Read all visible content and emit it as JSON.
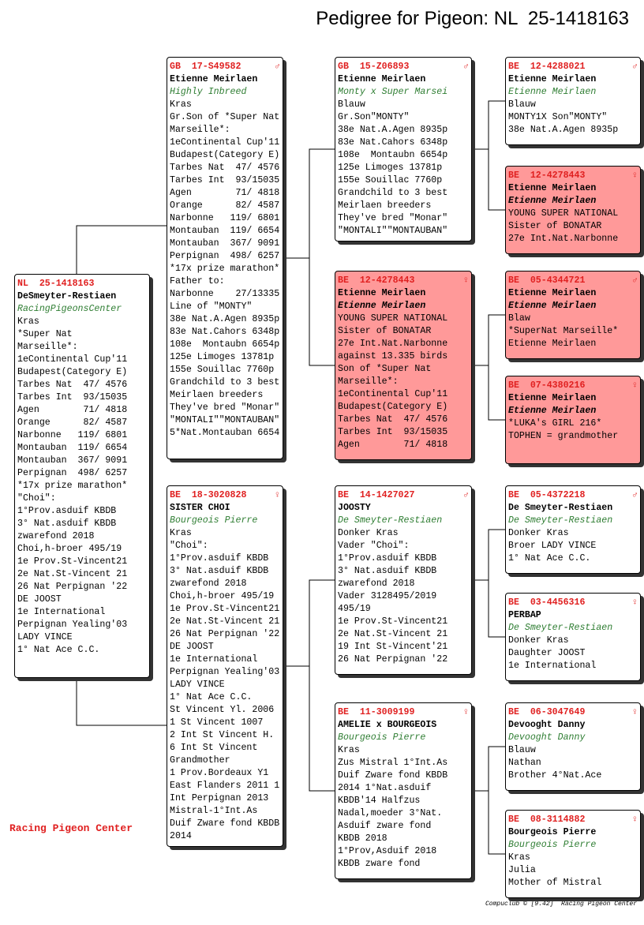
{
  "title": "Pedigree for Pigeon: NL  25-1418163",
  "footer": "Racing Pigeon Center",
  "credit": "Compuclub © [9.42]  Racing Pigeon Center",
  "pigeons": [
    {
      "ring": "NL  25-1418163",
      "name": "DeSmeyter-Restiaen",
      "second": "RacingPigeonsCenter",
      "background": "#ffffff",
      "lines": [
        "Kras",
        "*Super Nat",
        "Marseille*:",
        "1eContinental Cup'11",
        "Budapest(Category E)",
        "Tarbes Nat  47/ 4576",
        "Tarbes Int  93/15035",
        "Agen        71/ 4818",
        "Orange      82/ 4587",
        "Narbonne   119/ 6801",
        "Montauban  119/ 6654",
        "Montauban  367/ 9091",
        "Perpignan  498/ 6257",
        "*17x prize marathon*",
        "\"Choi\":",
        "1°Prov.asduif KBDB",
        "3° Nat.asduif KBDB",
        "zwarefond 2018",
        "Choi,h-broer 495/19",
        "1e Prov.St-Vincent21",
        "2e Nat.St-Vincent 21",
        "26 Nat Perpignan '22",
        "DE JOOST",
        "1e International",
        "Perpignan Yealing'03",
        "LADY VINCE",
        "1° Nat Ace C.C."
      ]
    },
    {
      "ring": "GB  17-S49582",
      "sex": "♂",
      "name": "Etienne Meirlaen",
      "second": "Highly Inbreed",
      "background": "#ffffff",
      "lines": [
        "Kras",
        "Gr.Son of *Super Nat",
        "Marseille*:",
        "1eContinental Cup'11",
        "Budapest(Category E)",
        "Tarbes Nat  47/ 4576",
        "Tarbes Int  93/15035",
        "Agen        71/ 4818",
        "Orange      82/ 4587",
        "Narbonne   119/ 6801",
        "Montauban  119/ 6654",
        "Montauban  367/ 9091",
        "Perpignan  498/ 6257",
        "*17x prize marathon*",
        "Father to:",
        "Narbonne    27/13335",
        "Line of \"MONTY\"",
        "38e Nat.A.Agen 8935p",
        "83e Nat.Cahors 6348p",
        "108e  Montaubn 6654p",
        "125e Limoges 13781p",
        "155e Souillac 7760p",
        "Grandchild to 3 best",
        "Meirlaen breeders",
        "They've bred \"Monar\"",
        "\"MONTALI\"\"MONTAUBAN\"",
        "5*Nat.Montauban 6654"
      ]
    },
    {
      "ring": "BE  18-3020828",
      "sex": "♀",
      "name": "SISTER CHOI",
      "second": "Bourgeois Pierre",
      "background": "#ffffff",
      "lines": [
        "Kras",
        "\"Choi\":",
        "1°Prov.asduif KBDB",
        "3° Nat.asduif KBDB",
        "zwarefond 2018",
        "Choi,h-broer 495/19",
        "1e Prov.St-Vincent21",
        "2e Nat.St-Vincent 21",
        "26 Nat Perpignan '22",
        "DE JOOST",
        "1e International",
        "Perpignan Yealing'03",
        "LADY VINCE",
        "1° Nat Ace C.C.",
        "St Vincent Yl. 2006",
        "1 St Vincent 1007",
        "2 Int St Vincent H.",
        "6 Int St Vincent",
        "Grandmother",
        "1 Prov.Bordeaux Y1",
        "East Flanders 2011 1",
        "Int Perpignan 2013",
        "Mistral-1°Int.As",
        "Duif Zware fond KBDB",
        "2014"
      ]
    },
    {
      "ring": "GB  15-Z06893",
      "sex": "♂",
      "name": "Etienne Meirlaen",
      "second": "Monty x Super Marsei",
      "background": "#ffffff",
      "lines": [
        "Blauw",
        "Gr.Son\"MONTY\"",
        "38e Nat.A.Agen 8935p",
        "83e Nat.Cahors 6348p",
        "108e  Montaubn 6654p",
        "125e Limoges 13781p",
        "155e Souillac 7760p",
        "Grandchild to 3 best",
        "Meirlaen breeders",
        "They've bred \"Monar\"",
        "\"MONTALI\"\"MONTAUBAN\""
      ]
    },
    {
      "ring": "BE  12-4278443",
      "sex": "♀",
      "name": "Etienne Meirlaen",
      "second": "Etienne Meirlaen",
      "background": "#ff9999",
      "lines": [
        "YOUNG SUPER NATIONAL",
        "Sister of BONATAR",
        "27e Int.Nat.Narbonne",
        "against 13.335 birds",
        "Son of *Super Nat",
        "Marseille*:",
        "1eContinental Cup'11",
        "Budapest(Category E)",
        "Tarbes Nat  47/ 4576",
        "Tarbes Int  93/15035",
        "Agen        71/ 4818"
      ]
    },
    {
      "ring": "BE  14-1427027",
      "sex": "♂",
      "name": "JOOSTY",
      "second": "De Smeyter-Restiaen",
      "background": "#ffffff",
      "lines": [
        "Donker Kras",
        "Vader \"Choi\":",
        "1°Prov.asduif KBDB",
        "3° Nat.asduif KBDB",
        "zwarefond 2018",
        "Vader 3128495/2019",
        "495/19",
        "1e Prov.St-Vincent21",
        "2e Nat.St-Vincent 21",
        "19 Int St-Vincent'21",
        "26 Nat Perpignan '22"
      ]
    },
    {
      "ring": "BE  11-3009199",
      "sex": "♀",
      "name": "AMELIE x BOURGEOIS",
      "second": "Bourgeois Pierre",
      "background": "#ffffff",
      "lines": [
        "Kras",
        "Zus Mistral 1°Int.As",
        "Duif Zware fond KBDB",
        "2014 1°Nat.asduif",
        "KBDB'14 Halfzus",
        "Nadal,moeder 3°Nat.",
        "Asduif zware fond",
        "KBDB 2018",
        "1°Prov,Asduif 2018",
        "KBDB zware fond"
      ]
    },
    {
      "ring": "BE  12-4288021",
      "sex": "♂",
      "name": "Etienne Meirlaen",
      "second": "Etienne Meirlaen",
      "background": "#ffffff",
      "lines": [
        "Blauw",
        "MONTY1X Son\"MONTY\"",
        "38e Nat.A.Agen 8935p"
      ]
    },
    {
      "ring": "BE  12-4278443",
      "sex": "♀",
      "name": "Etienne Meirlaen",
      "second": "Etienne Meirlaen",
      "background": "#ff9999",
      "lines": [
        "YOUNG SUPER NATIONAL",
        "Sister of BONATAR",
        "27e Int.Nat.Narbonne"
      ]
    },
    {
      "ring": "BE  05-4344721",
      "sex": "♂",
      "name": "Etienne Meirlaen",
      "second": "Etienne Meirlaen",
      "background": "#ff9999",
      "lines": [
        "Blaw",
        "*SuperNat Marseille*",
        "Etienne Meirlaen"
      ]
    },
    {
      "ring": "BE  07-4380216",
      "sex": "♀",
      "name": "Etienne Meirlaen",
      "second": "Etienne Meirlaen",
      "background": "#ff9999",
      "lines": [
        "*LUKA's GIRL 216*",
        "TOPHEN = grandmother"
      ]
    },
    {
      "ring": "BE  05-4372218",
      "sex": "♂",
      "name": "De Smeyter-Restiaen",
      "second": "De Smeyter-Restiaen",
      "background": "#ffffff",
      "lines": [
        "Donker Kras",
        "Broer LADY VINCE",
        "1° Nat Ace C.C."
      ]
    },
    {
      "ring": "BE  03-4456316",
      "sex": "♀",
      "name": "PERBAP",
      "second": "De Smeyter-Restiaen",
      "background": "#ffffff",
      "lines": [
        "Donker Kras",
        "Daughter JOOST",
        "1e International"
      ]
    },
    {
      "ring": "BE  06-3047649",
      "sex": "♀",
      "name": "Devooght Danny",
      "second": "Devooght Danny",
      "background": "#ffffff",
      "lines": [
        "Blauw",
        "Nathan",
        "Brother 4°Nat.Ace"
      ]
    },
    {
      "ring": "BE  08-3114882",
      "sex": "♀",
      "name": "Bourgeois Pierre",
      "second": "Bourgeois Pierre",
      "background": "#ffffff",
      "lines": [
        "Kras",
        "Julia",
        "Mother of Mistral"
      ]
    }
  ]
}
